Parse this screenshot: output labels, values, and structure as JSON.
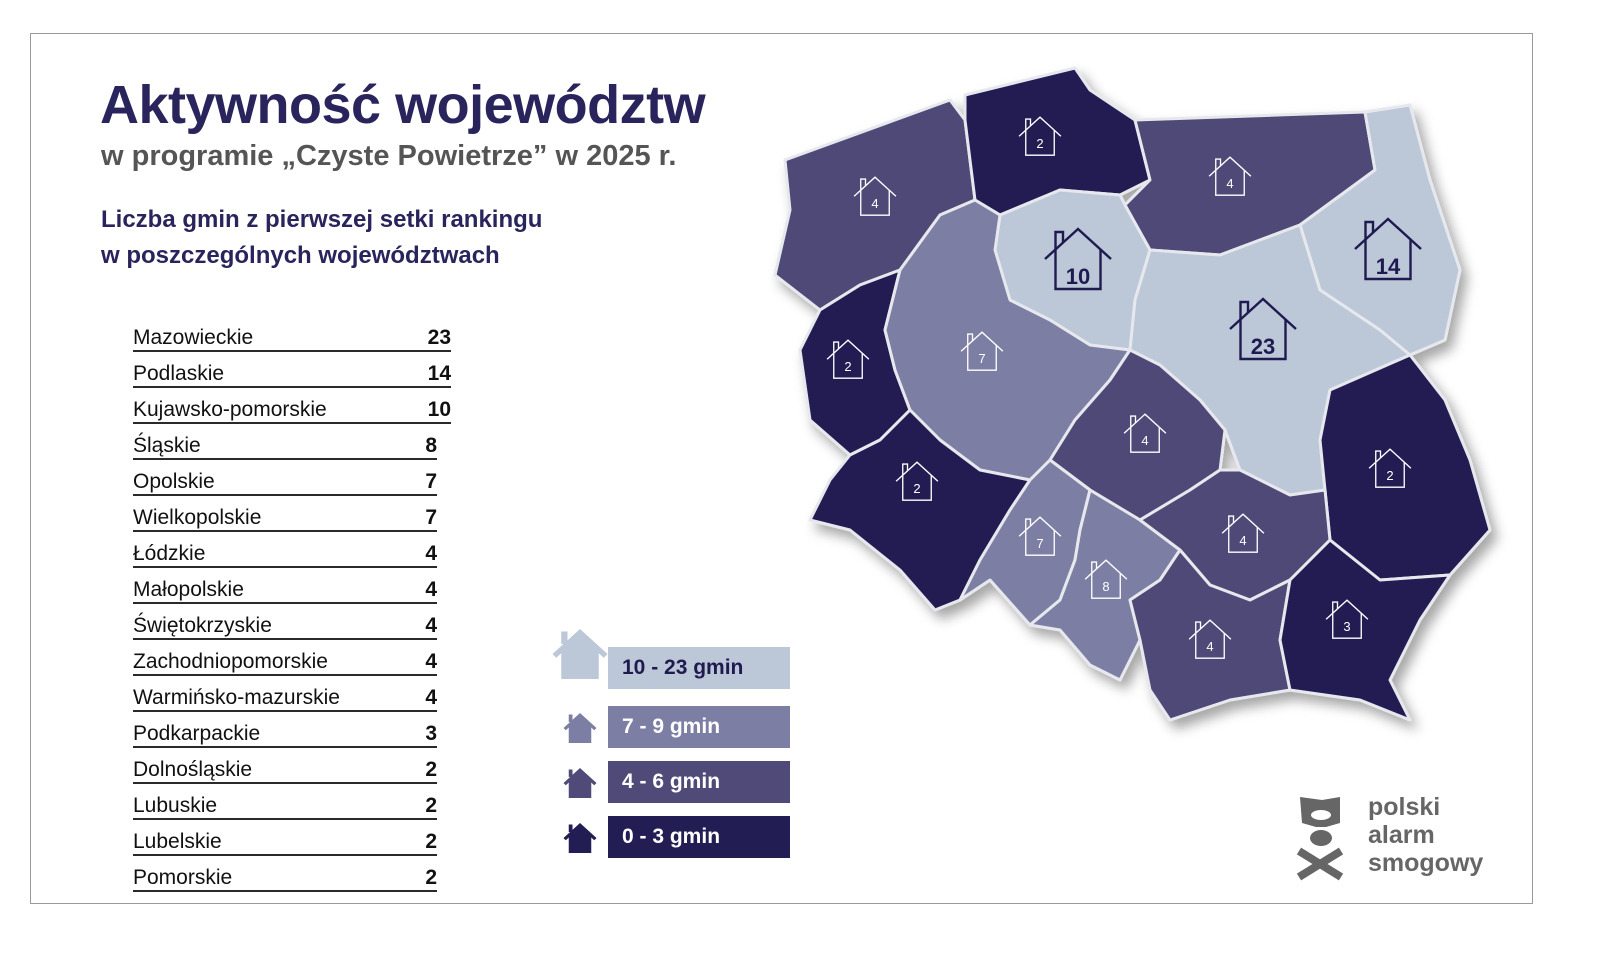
{
  "header": {
    "title": "Aktywność województw",
    "subtitle": "w programie „Czyste Powietrze” w 2025 r.",
    "description_line1": "Liczba gmin z pierwszej setki rankingu",
    "description_line2": "w poszczególnych województwach"
  },
  "ranking": [
    {
      "name": "Mazowieckie",
      "value": "23"
    },
    {
      "name": "Podlaskie",
      "value": "14"
    },
    {
      "name": "Kujawsko-pomorskie",
      "value": "10"
    },
    {
      "name": "Śląskie",
      "value": "8"
    },
    {
      "name": "Opolskie",
      "value": "7"
    },
    {
      "name": "Wielkopolskie",
      "value": "7"
    },
    {
      "name": "Łódzkie",
      "value": "4"
    },
    {
      "name": "Małopolskie",
      "value": "4"
    },
    {
      "name": "Świętokrzyskie",
      "value": "4"
    },
    {
      "name": "Zachodniopomorskie",
      "value": "4"
    },
    {
      "name": "Warmińsko-mazurskie",
      "value": "4"
    },
    {
      "name": "Podkarpackie",
      "value": "3"
    },
    {
      "name": "Dolnośląskie",
      "value": "2"
    },
    {
      "name": "Lubuskie",
      "value": "2"
    },
    {
      "name": "Lubelskie",
      "value": "2"
    },
    {
      "name": "Pomorskie",
      "value": "2"
    }
  ],
  "legend": [
    {
      "label": "10 - 23 gmin",
      "color": "#bcc8d8",
      "text_color": "#1f1a4f"
    },
    {
      "label": "7 - 9 gmin",
      "color": "#7d7ea3",
      "text_color": "#ffffff"
    },
    {
      "label": "4 - 6 gmin",
      "color": "#4f4a78",
      "text_color": "#ffffff"
    },
    {
      "label": "0 - 3 gmin",
      "color": "#221d52",
      "text_color": "#ffffff"
    }
  ],
  "map": {
    "regions": [
      {
        "name": "Zachodniopomorskie",
        "value": "4",
        "class": 2
      },
      {
        "name": "Pomorskie",
        "value": "2",
        "class": 3
      },
      {
        "name": "Warmińsko-mazurskie",
        "value": "4",
        "class": 2
      },
      {
        "name": "Podlaskie",
        "value": "14",
        "class": 0
      },
      {
        "name": "Kujawsko-pomorskie",
        "value": "10",
        "class": 0
      },
      {
        "name": "Mazowieckie",
        "value": "23",
        "class": 0
      },
      {
        "name": "Lubuskie",
        "value": "2",
        "class": 3
      },
      {
        "name": "Wielkopolskie",
        "value": "7",
        "class": 1
      },
      {
        "name": "Łódzkie",
        "value": "4",
        "class": 2
      },
      {
        "name": "Lubelskie",
        "value": "2",
        "class": 3
      },
      {
        "name": "Dolnośląskie",
        "value": "2",
        "class": 3
      },
      {
        "name": "Opolskie",
        "value": "7",
        "class": 1
      },
      {
        "name": "Śląskie",
        "value": "8",
        "class": 1
      },
      {
        "name": "Świętokrzyskie",
        "value": "4",
        "class": 2
      },
      {
        "name": "Małopolskie",
        "value": "4",
        "class": 2
      },
      {
        "name": "Podkarpackie",
        "value": "3",
        "class": 3
      }
    ]
  },
  "logo": {
    "line1": "polski",
    "line2": "alarm",
    "line3": "smogowy"
  }
}
